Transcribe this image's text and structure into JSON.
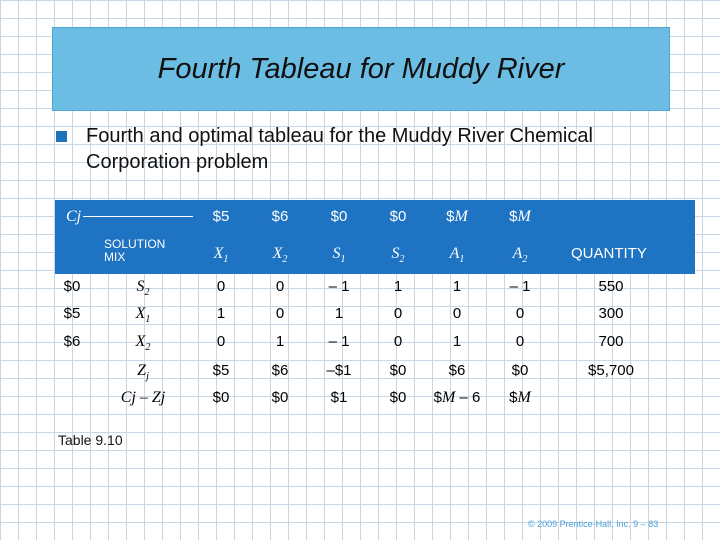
{
  "title": "Fourth Tableau for Muddy River",
  "bullet": "Fourth and optimal tableau for the Muddy River Chemical Corporation problem",
  "table": {
    "cj_label": "Cj",
    "cj_values": [
      "$5",
      "$6",
      "$0",
      "$0",
      "$M",
      "$M"
    ],
    "solution_mix_label": "SOLUTION MIX",
    "columns": [
      "X1",
      "X2",
      "S1",
      "S2",
      "A1",
      "A2"
    ],
    "quantity_label": "QUANTITY",
    "rows": [
      {
        "cj": "$0",
        "mix": "S2",
        "values": [
          "0",
          "0",
          "– 1",
          "1",
          "1",
          "– 1"
        ],
        "quantity": "550"
      },
      {
        "cj": "$5",
        "mix": "X1",
        "values": [
          "1",
          "0",
          "1",
          "0",
          "0",
          "0"
        ],
        "quantity": "300"
      },
      {
        "cj": "$6",
        "mix": "X2",
        "values": [
          "0",
          "1",
          "– 1",
          "0",
          "1",
          "0"
        ],
        "quantity": "700"
      }
    ],
    "zj": {
      "label": "Zj",
      "values": [
        "$5",
        "$6",
        "–$1",
        "$0",
        "$6",
        "$0"
      ],
      "quantity": "$5,700"
    },
    "cj_minus_zj": {
      "label": "Cj – Zj",
      "values": [
        "$0",
        "$0",
        "$1",
        "$0",
        "$M – 6",
        "$M"
      ]
    }
  },
  "table_label": "Table 9.10",
  "footer": "© 2009 Prentice-Hall, Inc.   9 – 83",
  "colors": {
    "title_bg": "#6cbde3",
    "header_band": "#1e73c2",
    "bullet": "#1e73b8",
    "grid": "#c9d6e4"
  }
}
